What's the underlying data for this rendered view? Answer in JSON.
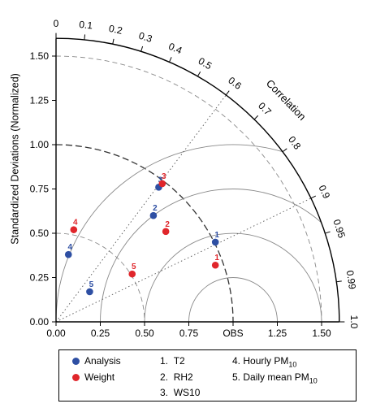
{
  "chart_data": {
    "type": "scatter",
    "diagram": "taylor",
    "ylabel": "Standardized Deviations (Normalized)",
    "correlation_label": "Correlation",
    "reference_label": "OBS",
    "std_range": [
      0,
      1.6
    ],
    "std_ticks": [
      0.0,
      0.25,
      0.5,
      0.75,
      1.0,
      1.25,
      1.5
    ],
    "std_tick_labels": [
      "0.00",
      "0.25",
      "0.50",
      "0.75",
      "1.00",
      "1.25",
      "1.50"
    ],
    "x_tick_labels": [
      "0.00",
      "0.25",
      "0.50",
      "0.75",
      "OBS",
      "1.25",
      "1.50"
    ],
    "correlation_ticks": [
      0,
      0.1,
      0.2,
      0.3,
      0.4,
      0.5,
      0.6,
      0.7,
      0.8,
      0.9,
      0.95,
      0.99,
      1.0
    ],
    "correlation_tick_labels": [
      "0",
      "0.1",
      "0.2",
      "0.3",
      "0.4",
      "0.5",
      "0.6",
      "0.7",
      "0.8",
      "0.9",
      "0.95",
      "0.99",
      "1.0"
    ],
    "reference_std": 1.0,
    "series": [
      {
        "name": "Analysis",
        "color": "#2e4fa3",
        "points": [
          {
            "label": "1",
            "x": 0.9,
            "y": 0.45
          },
          {
            "label": "2",
            "x": 0.55,
            "y": 0.6
          },
          {
            "label": "3",
            "x": 0.58,
            "y": 0.76
          },
          {
            "label": "4",
            "x": 0.07,
            "y": 0.38
          },
          {
            "label": "5",
            "x": 0.19,
            "y": 0.17
          }
        ]
      },
      {
        "name": "Weight",
        "color": "#e0262b",
        "points": [
          {
            "label": "1",
            "x": 0.9,
            "y": 0.32
          },
          {
            "label": "2",
            "x": 0.62,
            "y": 0.51
          },
          {
            "label": "3",
            "x": 0.6,
            "y": 0.78
          },
          {
            "label": "4",
            "x": 0.1,
            "y": 0.52
          },
          {
            "label": "5",
            "x": 0.43,
            "y": 0.27
          }
        ]
      }
    ],
    "variables": [
      {
        "number": "1.",
        "name": "T2"
      },
      {
        "number": "2.",
        "name": "RH2"
      },
      {
        "number": "3.",
        "name": "WS10"
      },
      {
        "number": "4.",
        "name": "Hourly PM",
        "sub": "10"
      },
      {
        "number": "5.",
        "name": "Daily  mean PM",
        "sub": "10"
      }
    ]
  }
}
